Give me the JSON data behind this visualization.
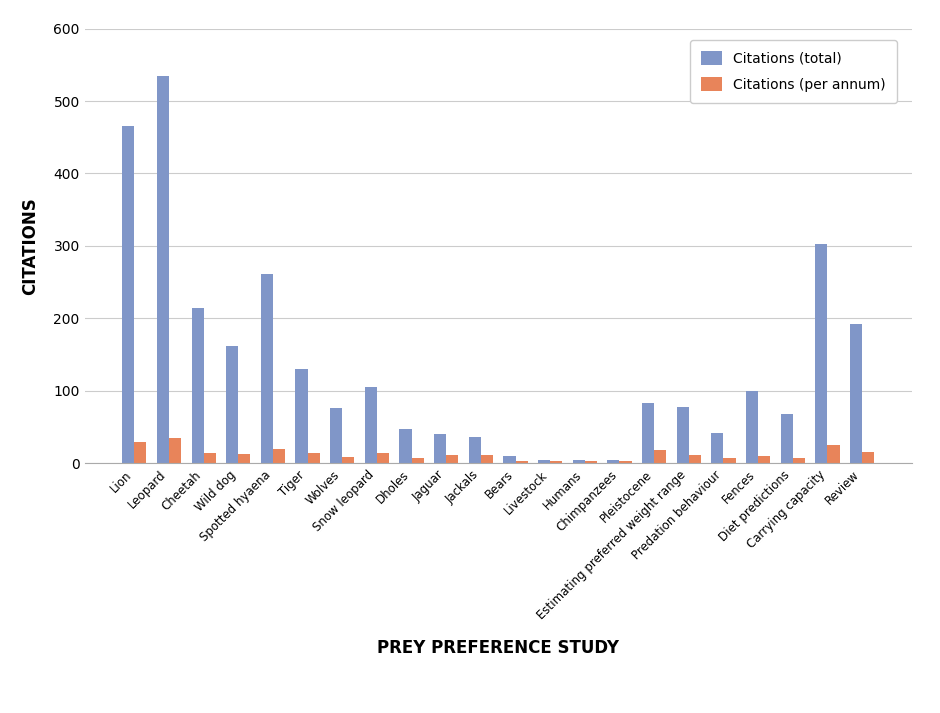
{
  "categories": [
    "Lion",
    "Leopard",
    "Cheetah",
    "Wild dog",
    "Spotted hyaena",
    "Tiger",
    "Wolves",
    "Snow leopard",
    "Dholes",
    "Jaguar",
    "Jackals",
    "Bears",
    "Livestock",
    "Humans",
    "Chimpanzees",
    "Pleistocene",
    "Estimating preferred weight range",
    "Predation behaviour",
    "Fences",
    "Diet predictions",
    "Carrying capacity",
    "Review"
  ],
  "total_citations": [
    465,
    535,
    215,
    162,
    262,
    130,
    76,
    105,
    47,
    40,
    37,
    10,
    5,
    5,
    5,
    84,
    78,
    42,
    100,
    68,
    303,
    193
  ],
  "per_annum_citations": [
    29,
    35,
    14,
    13,
    20,
    14,
    9,
    14,
    8,
    12,
    12,
    4,
    4,
    4,
    4,
    18,
    12,
    7,
    10,
    7,
    25,
    16
  ],
  "bar_color_total": "#8096C8",
  "bar_color_per_annum": "#E8845A",
  "ylabel": "CITATIONS",
  "xlabel": "PREY PREFERENCE STUDY",
  "legend_total": "Citations (total)",
  "legend_per_annum": "Citations (per annum)",
  "ylim": [
    0,
    600
  ],
  "yticks": [
    0,
    100,
    200,
    300,
    400,
    500,
    600
  ],
  "background_color": "#FFFFFF",
  "grid_color": "#CCCCCC"
}
